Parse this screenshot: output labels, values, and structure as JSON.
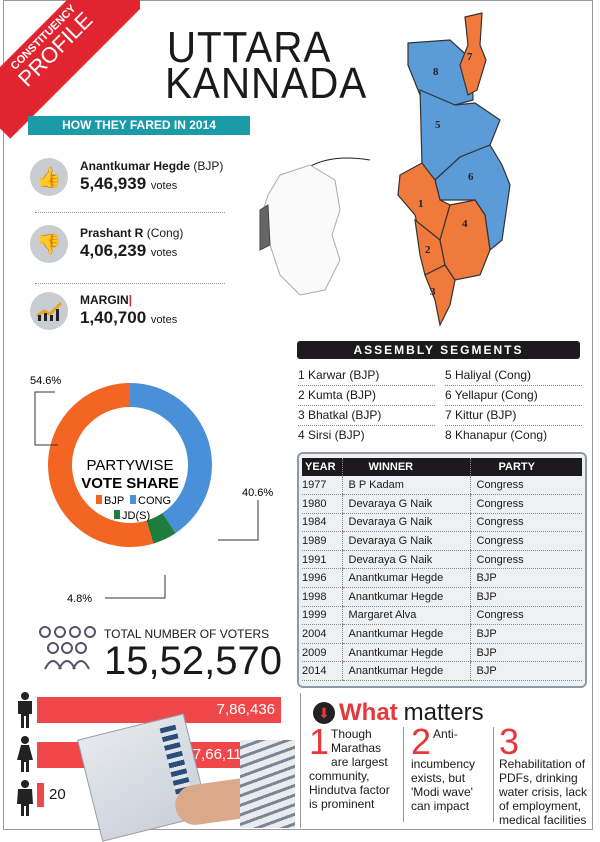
{
  "ribbon": {
    "line1": "CONSTITUENCY",
    "line2": "PROFILE"
  },
  "title": {
    "line1": "UTTARA",
    "line2": "KANNADA"
  },
  "fared_header": "HOW THEY FARED IN 2014",
  "candidates": [
    {
      "icon": "thumbs-up-icon",
      "name": "Anantkumar Hegde",
      "party": "(BJP)",
      "votes": "5,46,939",
      "unit": "votes"
    },
    {
      "icon": "thumbs-down-icon",
      "name": "Prashant R",
      "party": "(Cong)",
      "votes": "4,06,239",
      "unit": "votes"
    }
  ],
  "margin": {
    "icon": "growth-chart-icon",
    "label": "MARGIN",
    "votes": "1,40,700",
    "unit": "votes"
  },
  "map": {
    "segments": [
      "1",
      "2",
      "3",
      "4",
      "5",
      "6",
      "7",
      "8"
    ],
    "colors": {
      "BJP": "#f07a3c",
      "Cong": "#5b9bd8"
    }
  },
  "assembly": {
    "header": "ASSEMBLY SEGMENTS",
    "left": [
      "1 Karwar (BJP)",
      "2 Kumta (BJP)",
      "3 Bhatkal (BJP)",
      "4 Sirsi (BJP)"
    ],
    "right": [
      "5 Haliyal (Cong)",
      "6 Yellapur (Cong)",
      "7 Kittur (BJP)",
      "8 Khanapur (Cong)"
    ]
  },
  "history": {
    "headers": [
      "YEAR",
      "WINNER",
      "PARTY"
    ],
    "rows": [
      [
        "1977",
        "B P Kadam",
        "Congress"
      ],
      [
        "1980",
        "Devaraya G Naik",
        "Congress"
      ],
      [
        "1984",
        "Devaraya G Naik",
        "Congress"
      ],
      [
        "1989",
        "Devaraya  G Naik",
        "Congress"
      ],
      [
        "1991",
        "Devaraya G Naik",
        "Congress"
      ],
      [
        "1996",
        "Anantkumar Hegde",
        "BJP"
      ],
      [
        "1998",
        "Anantkumar Hegde",
        "BJP"
      ],
      [
        "1999",
        "Margaret Alva",
        "Congress"
      ],
      [
        "2004",
        "Anantkumar Hegde",
        "BJP"
      ],
      [
        "2009",
        "Anantkumar Hegde",
        "BJP"
      ],
      [
        "2014",
        "Anantkumar Hegde",
        "BJP"
      ]
    ]
  },
  "chart_data": {
    "type": "pie",
    "title": "PARTYWISE VOTE SHARE",
    "categories": [
      "BJP",
      "CONG",
      "JD(S)"
    ],
    "values": [
      54.6,
      40.6,
      4.8
    ],
    "labels": [
      "54.6%",
      "40.6%",
      "4.8%"
    ],
    "colors": [
      "#f26522",
      "#4a90d9",
      "#1e7d3c"
    ]
  },
  "voters": {
    "icon": "crowd-icon",
    "label": "TOTAL NUMBER OF VOTERS",
    "total": "15,52,570",
    "male": "7,86,436",
    "female": "7,66,114",
    "third_gender": "20",
    "male_value": 786436,
    "female_value": 766114,
    "third_value": 20
  },
  "what_matters": {
    "title_red": "What",
    "title_rest": "matters",
    "points": [
      {
        "num": "1",
        "text": "Though Marathas are largest community, Hindutva factor is prominent"
      },
      {
        "num": "2",
        "text": "Anti-incumbency exists, but 'Modi wave' can impact"
      },
      {
        "num": "3",
        "text": "Rehabilitation of PDFs, drinking water crisis, lack of employment, medical facilities"
      }
    ]
  }
}
